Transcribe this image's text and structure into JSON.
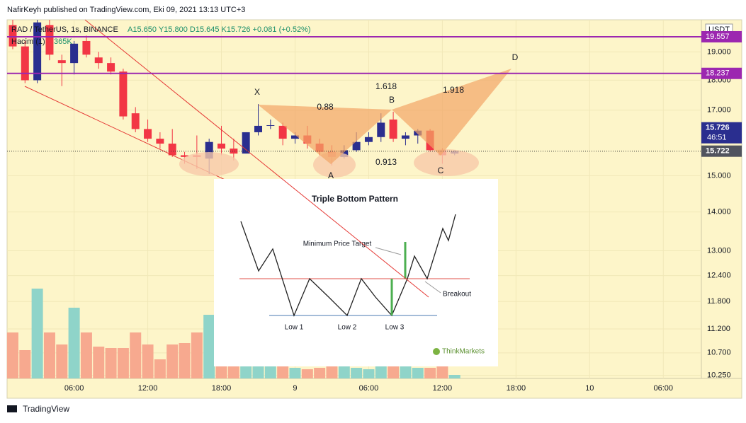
{
  "header": {
    "publisher": "NafirKeyh published on TradingView.com, Eki 09, 2021 13:13 UTC+3",
    "footer": "TradingView"
  },
  "chart_data": {
    "type": "candlestick",
    "symbol": "RAD / TetherUS, 1s, BINANCE",
    "ohlc_legend": "A15.650 Y15.800 D15.645 K15.726 +0.081 (+0.52%)",
    "volume_title": "Hacim (1)",
    "volume_label": "365K",
    "currency": "USDT",
    "up_color": "#2a2e8f",
    "down_color": "#f23645",
    "volume_up_color": "#8fd4c9",
    "volume_down_color": "#f7a98f",
    "log_scale": true,
    "open": [
      20.0,
      19.2,
      18.0,
      20.0,
      18.7,
      18.6,
      19.4,
      18.8,
      18.6,
      18.3,
      16.9,
      16.4,
      16.1,
      15.95,
      15.6,
      15.6,
      15.5,
      15.95,
      15.8,
      15.65,
      16.3,
      16.5,
      16.5,
      16.1,
      16.2,
      15.95,
      15.7,
      15.55,
      15.75,
      16.0,
      16.15,
      16.7,
      16.1,
      16.2,
      16.35,
      15.75,
      15.65
    ],
    "high": [
      20.2,
      19.4,
      20.2,
      20.2,
      18.9,
      19.4,
      19.6,
      19.0,
      18.8,
      18.4,
      17.1,
      16.7,
      16.3,
      16.4,
      15.7,
      16.2,
      16.1,
      16.5,
      16.1,
      16.3,
      17.2,
      16.7,
      16.6,
      16.3,
      16.5,
      16.1,
      15.9,
      15.9,
      16.3,
      16.3,
      16.9,
      16.95,
      16.3,
      16.4,
      16.4,
      15.8,
      15.75
    ],
    "low": [
      19.1,
      17.9,
      17.9,
      18.7,
      17.8,
      18.2,
      18.8,
      18.4,
      18.2,
      16.7,
      16.3,
      16.0,
      15.8,
      15.55,
      15.35,
      15.2,
      15.05,
      15.6,
      15.45,
      15.65,
      16.2,
      16.4,
      15.9,
      15.95,
      15.8,
      15.6,
      15.3,
      15.5,
      15.7,
      15.9,
      16.0,
      16.0,
      15.9,
      15.95,
      15.7,
      15.35,
      15.6
    ],
    "close": [
      19.2,
      18.0,
      20.1,
      18.9,
      18.6,
      19.3,
      18.9,
      18.6,
      18.3,
      16.8,
      16.4,
      16.1,
      15.95,
      15.6,
      15.55,
      15.55,
      16.0,
      15.8,
      15.65,
      16.3,
      16.5,
      16.52,
      16.1,
      16.2,
      15.95,
      15.7,
      15.55,
      15.75,
      16.0,
      16.15,
      16.6,
      16.1,
      16.2,
      16.35,
      15.75,
      15.6,
      15.72
    ],
    "volume": [
      4745,
      2920,
      9271,
      4745,
      3504,
      7300,
      4745,
      3285,
      3139,
      3139,
      4745,
      3504,
      1971,
      3504,
      3650,
      4745,
      6570,
      4745,
      5256,
      1825,
      3285,
      4234,
      1679,
      1095,
      949,
      1095,
      1241,
      1241,
      1095,
      949,
      1825,
      1679,
      1314,
      1095,
      1095,
      1679,
      365
    ],
    "xlim": [
      -0.46,
      56.1
    ],
    "xticks": [
      {
        "value": 5,
        "label": "06:00"
      },
      {
        "value": 11,
        "label": "12:00"
      },
      {
        "value": 17,
        "label": "18:00"
      },
      {
        "value": 23,
        "label": "9"
      },
      {
        "value": 29,
        "label": "06:00"
      },
      {
        "value": 35,
        "label": "12:00"
      },
      {
        "value": 41,
        "label": "18:00"
      },
      {
        "value": 47,
        "label": "10"
      },
      {
        "value": 53,
        "label": "06:00"
      }
    ],
    "ylim": [
      10.19,
      20.2
    ],
    "yticks": [
      {
        "value": 19,
        "label": "19.000"
      },
      {
        "value": 18,
        "label": "18.000"
      },
      {
        "value": 17,
        "label": "17.000"
      },
      {
        "value": 15,
        "label": "15.000"
      },
      {
        "value": 14,
        "label": "14.000"
      },
      {
        "value": 13,
        "label": "13.000"
      },
      {
        "value": 12.4,
        "label": "12.400"
      },
      {
        "value": 11.8,
        "label": "11.800"
      },
      {
        "value": 11.2,
        "label": "11.200"
      },
      {
        "value": 10.7,
        "label": "10.700"
      },
      {
        "value": 10.25,
        "label": "10.250"
      }
    ],
    "hlines": [
      {
        "value": 19.557,
        "label": "19.557"
      },
      {
        "value": 18.237,
        "label": "18.237"
      }
    ],
    "hline_color": "#9c27b0",
    "last_price": {
      "value": 15.726,
      "label": "15.726"
    },
    "countdown": "46:51",
    "close_line": {
      "value": 15.722,
      "label": "15.722"
    },
    "pattern": {
      "points": [
        "X",
        "A",
        "B",
        "C",
        "D"
      ],
      "ratios": [
        "0.88",
        "1.618",
        "1.918",
        "0.913"
      ]
    },
    "inset": {
      "title": "Triple Bottom Pattern",
      "target": "Minimum Price Target",
      "breakout": "Breakout",
      "lows": [
        "Low 1",
        "Low 2",
        "Low 3"
      ],
      "brand": "ThinkMarkets"
    }
  }
}
